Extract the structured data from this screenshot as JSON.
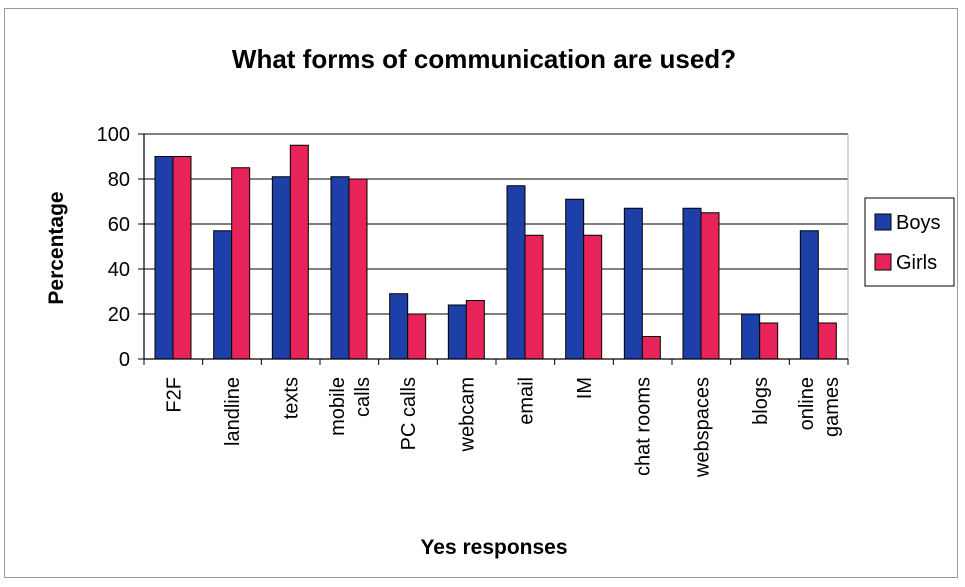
{
  "chart_data": {
    "type": "bar",
    "title": "What forms of communication are used?",
    "xlabel": "Yes responses",
    "ylabel": "Percentage",
    "ylim": [
      0,
      100
    ],
    "yticks": [
      0,
      20,
      40,
      60,
      80,
      100
    ],
    "grid": true,
    "legend_position": "right",
    "categories": [
      [
        "F2F"
      ],
      [
        "landline"
      ],
      [
        "texts"
      ],
      [
        "mobile",
        "calls"
      ],
      [
        "PC calls"
      ],
      [
        "webcam"
      ],
      [
        "email"
      ],
      [
        "IM"
      ],
      [
        "chat rooms"
      ],
      [
        "webspaces"
      ],
      [
        "blogs"
      ],
      [
        "online",
        "games"
      ]
    ],
    "series": [
      {
        "name": "Boys",
        "color": "#1f3fa8",
        "values": [
          90,
          57,
          81,
          81,
          29,
          24,
          77,
          71,
          67,
          67,
          20,
          57
        ]
      },
      {
        "name": "Girls",
        "color": "#e8235a",
        "values": [
          90,
          85,
          95,
          80,
          20,
          26,
          55,
          55,
          10,
          65,
          16,
          16
        ]
      }
    ]
  }
}
